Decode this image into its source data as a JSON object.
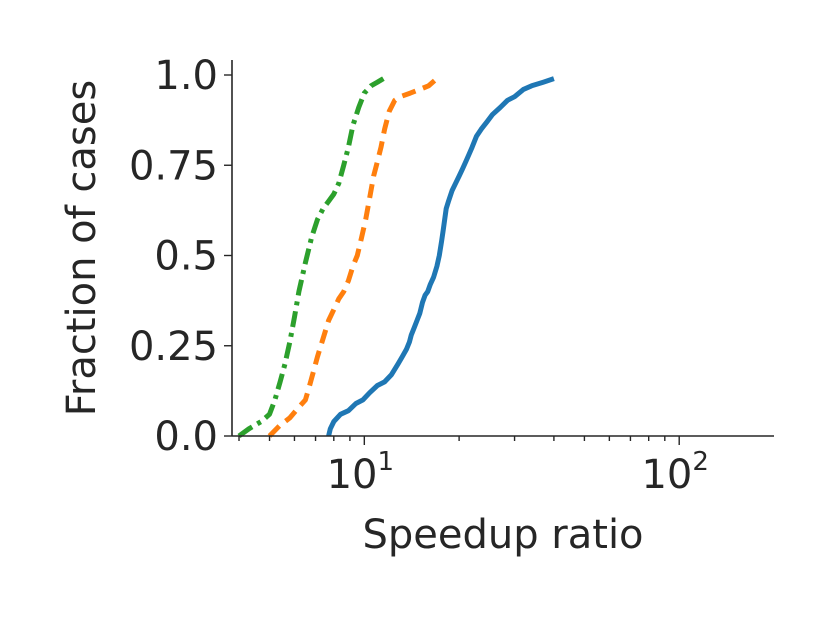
{
  "chart_data": {
    "type": "line",
    "xlabel": "Speedup ratio",
    "ylabel": "Fraction of cases",
    "xscale": "log",
    "xlim": [
      3.8,
      200
    ],
    "ylim": [
      0.0,
      1.0
    ],
    "grid": false,
    "x_ticks": [
      {
        "value": 10,
        "base": "10",
        "exp": "1"
      },
      {
        "value": 100,
        "base": "10",
        "exp": "2"
      }
    ],
    "y_ticks": [
      {
        "value": 0.0,
        "label": "0.0"
      },
      {
        "value": 0.25,
        "label": "0.25"
      },
      {
        "value": 0.5,
        "label": "0.5"
      },
      {
        "value": 0.75,
        "label": "0.75"
      },
      {
        "value": 1.0,
        "label": "1.0"
      }
    ],
    "series": [
      {
        "color": "#1f77b4",
        "dash": "solid",
        "x": [
          7.7,
          7.8,
          8.0,
          8.4,
          8.9,
          9.4,
          9.9,
          10.4,
          11.0,
          11.6,
          12.2,
          12.8,
          13.2,
          13.6,
          13.9,
          14.1,
          14.4,
          14.7,
          15.0,
          15.3,
          15.6,
          15.9,
          16.2,
          16.6,
          17.0,
          17.3,
          17.6,
          17.8,
          18.0,
          18.2,
          18.5,
          19.0,
          19.5,
          20.0,
          20.5,
          21.0,
          21.5,
          22.0,
          22.7,
          23.5,
          24.5,
          25.5,
          27.0,
          28.5,
          30.0,
          32.0,
          34.0,
          37.0,
          40.0
        ],
        "y": [
          0.0,
          0.02,
          0.04,
          0.06,
          0.07,
          0.09,
          0.1,
          0.12,
          0.14,
          0.15,
          0.17,
          0.2,
          0.22,
          0.24,
          0.26,
          0.28,
          0.3,
          0.32,
          0.34,
          0.37,
          0.39,
          0.4,
          0.42,
          0.44,
          0.47,
          0.5,
          0.54,
          0.57,
          0.6,
          0.63,
          0.65,
          0.68,
          0.7,
          0.72,
          0.74,
          0.76,
          0.78,
          0.8,
          0.83,
          0.85,
          0.87,
          0.89,
          0.91,
          0.93,
          0.94,
          0.96,
          0.97,
          0.98,
          0.99
        ]
      },
      {
        "color": "#ff7f0e",
        "dash": "dashed",
        "x": [
          5.0,
          5.4,
          5.8,
          6.2,
          6.5,
          6.7,
          6.9,
          7.1,
          7.4,
          7.7,
          8.0,
          8.3,
          8.6,
          8.9,
          9.2,
          9.5,
          9.8,
          10.1,
          10.4,
          10.7,
          11.0,
          11.3,
          11.6,
          12.0,
          12.5,
          13.0,
          14.0,
          15.0,
          16.0,
          17.0
        ],
        "y": [
          0.0,
          0.03,
          0.05,
          0.08,
          0.1,
          0.14,
          0.18,
          0.22,
          0.27,
          0.32,
          0.35,
          0.38,
          0.4,
          0.43,
          0.47,
          0.5,
          0.55,
          0.6,
          0.66,
          0.72,
          0.76,
          0.8,
          0.85,
          0.9,
          0.93,
          0.94,
          0.95,
          0.96,
          0.97,
          0.99
        ]
      },
      {
        "color": "#2ca02c",
        "dash": "dashdot",
        "x": [
          4.0,
          4.3,
          4.7,
          5.0,
          5.2,
          5.4,
          5.6,
          5.8,
          6.0,
          6.2,
          6.5,
          6.8,
          7.1,
          7.4,
          7.7,
          8.0,
          8.3,
          8.6,
          8.9,
          9.2,
          9.6,
          10.0,
          10.5,
          11.0,
          11.5
        ],
        "y": [
          0.0,
          0.02,
          0.04,
          0.06,
          0.1,
          0.15,
          0.2,
          0.26,
          0.33,
          0.4,
          0.48,
          0.55,
          0.6,
          0.63,
          0.65,
          0.67,
          0.7,
          0.75,
          0.8,
          0.86,
          0.91,
          0.95,
          0.97,
          0.98,
          0.99
        ]
      }
    ]
  }
}
